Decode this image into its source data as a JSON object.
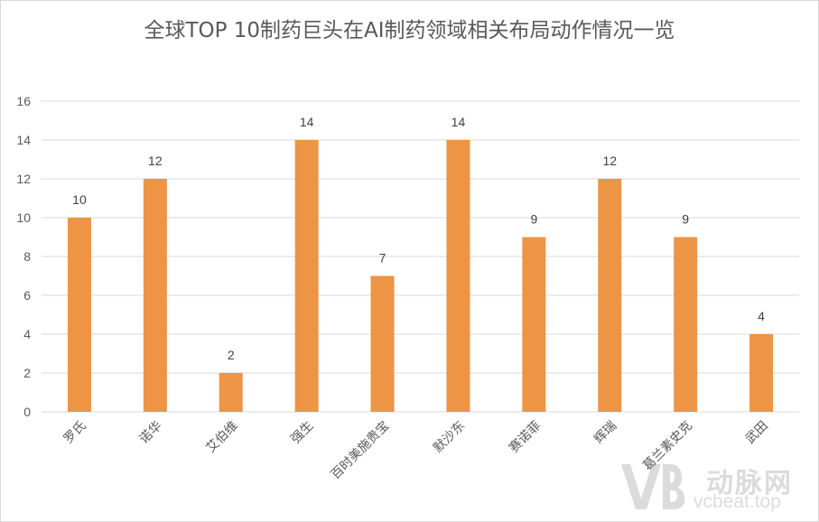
{
  "chart_data": {
    "type": "bar",
    "title": "全球TOP 10制药巨头在AI制药领域相关布局动作情况一览",
    "categories": [
      "罗氏",
      "诺华",
      "艾伯维",
      "强生",
      "百时美施贵宝",
      "默沙东",
      "赛诺菲",
      "辉瑞",
      "葛兰素史克",
      "武田"
    ],
    "values": [
      10,
      12,
      2,
      14,
      7,
      14,
      9,
      12,
      9,
      4
    ],
    "ylim": [
      0,
      16
    ],
    "yticks": [
      0,
      2,
      4,
      6,
      8,
      10,
      12,
      14,
      16
    ],
    "grid": true,
    "bar_color": "#ED9445",
    "grid_color": "#d9d9d9"
  },
  "watermark": {
    "brand_cn": "动脉网",
    "url": "vcbeat.top"
  }
}
